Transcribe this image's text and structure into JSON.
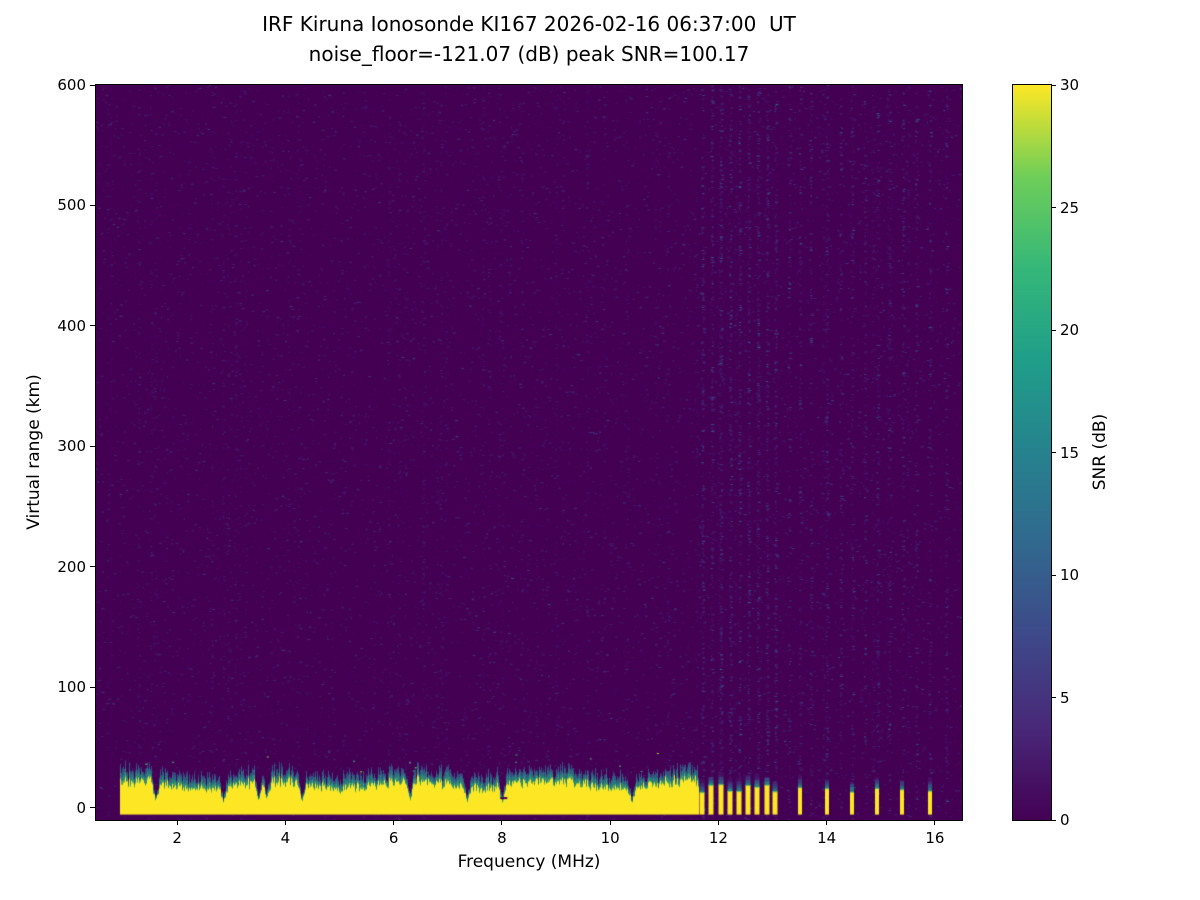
{
  "chart_data": {
    "type": "heatmap",
    "title_line1": "IRF Kiruna Ionosonde KI167 2026-02-16 06:37:00  UT",
    "title_line2": "noise_floor=-121.07 (dB) peak SNR=100.17",
    "xlabel": "Frequency (MHz)",
    "ylabel": "Virtual range (km)",
    "colorbar_label": "SNR (dB)",
    "xlim": [
      0.5,
      16.5
    ],
    "ylim": [
      -10,
      600
    ],
    "clim": [
      0,
      30
    ],
    "x_ticks": [
      2,
      4,
      6,
      8,
      10,
      12,
      14,
      16
    ],
    "y_ticks": [
      0,
      100,
      200,
      300,
      400,
      500,
      600
    ],
    "colorbar_ticks": [
      0,
      5,
      10,
      15,
      20,
      25,
      30
    ],
    "colormap": "viridis",
    "viridis_stops": [
      "#440154",
      "#482878",
      "#3e4989",
      "#31688e",
      "#26828e",
      "#1f9e89",
      "#35b779",
      "#6ece58",
      "#fde725"
    ],
    "features": {
      "background_snr_db": 0,
      "noise_speckle_max_db": 8,
      "ground_echo": {
        "freq_start_mhz": 0.95,
        "freq_end_mhz": 11.62,
        "range_km": [
          -6,
          30
        ],
        "fringe_top_km": 42,
        "peak_snr_db": 30,
        "notch_freqs_mhz": [
          1.6,
          2.85,
          3.5,
          3.65,
          4.3,
          6.3,
          7.35,
          8.0,
          10.4
        ]
      },
      "discrete_stripe_freqs_mhz": [
        11.7,
        11.87,
        12.04,
        12.21,
        12.38,
        12.55,
        12.72,
        12.89,
        13.05,
        13.5,
        14.0,
        14.47,
        14.93,
        15.4,
        15.9
      ],
      "noise_column_freqs_mhz": [
        11.7,
        11.87,
        12.04,
        12.21,
        12.38,
        12.55,
        12.72,
        12.89,
        13.05,
        13.3,
        13.5,
        13.7,
        14.0,
        14.25,
        14.47,
        14.7,
        14.93,
        15.15,
        15.4,
        15.65,
        15.9,
        16.2
      ]
    }
  }
}
